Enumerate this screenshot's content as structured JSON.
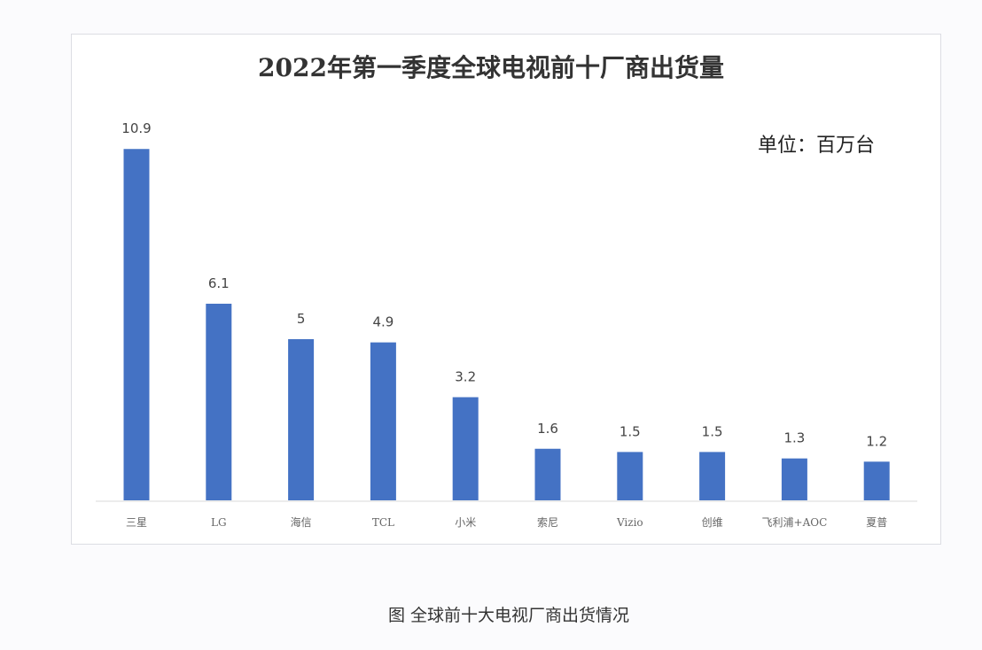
{
  "chart_data": {
    "type": "bar",
    "title": "2022年第一季度全球电视前十厂商出货量",
    "unit_label": "单位：百万台",
    "caption": "图 全球前十大电视厂商出货情况",
    "categories": [
      "三星",
      "LG",
      "海信",
      "TCL",
      "小米",
      "索尼",
      "Vizio",
      "创维",
      "飞利浦+AOC",
      "夏普"
    ],
    "values": [
      10.9,
      6.1,
      5,
      4.9,
      3.2,
      1.6,
      1.5,
      1.5,
      1.3,
      1.2
    ],
    "value_labels": [
      "10.9",
      "6.1",
      "5",
      "4.9",
      "3.2",
      "1.6",
      "1.5",
      "1.5",
      "1.3",
      "1.2"
    ],
    "xlabel": "",
    "ylabel": "",
    "ylim": [
      0,
      11
    ],
    "bar_color": "#4472c4"
  }
}
